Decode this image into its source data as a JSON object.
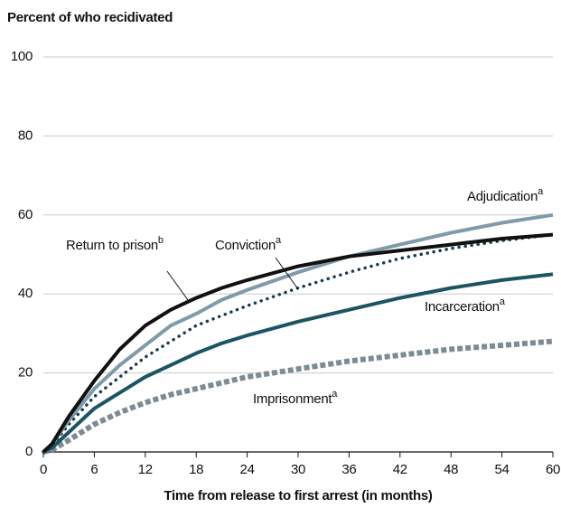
{
  "chart_data": {
    "type": "line",
    "title": "Percent of who recidivated",
    "xlabel": "Time from release to first arrest (in months)",
    "x": [
      0,
      1,
      3,
      6,
      9,
      12,
      15,
      18,
      21,
      24,
      30,
      36,
      42,
      48,
      54,
      60
    ],
    "series": [
      {
        "name": "Return to prison",
        "footnote": "b",
        "color": "#111111",
        "style": "solid",
        "values": [
          0,
          2,
          9,
          18,
          26,
          32,
          36,
          39,
          41.5,
          43.5,
          47,
          49.5,
          51,
          52.5,
          54,
          55
        ]
      },
      {
        "name": "Adjudication",
        "footnote": "a",
        "color": "#7f9aa8",
        "style": "solid",
        "values": [
          0,
          2,
          8,
          16,
          22,
          27,
          32,
          35,
          38.5,
          41,
          45.5,
          49.5,
          52.5,
          55.5,
          58,
          60
        ]
      },
      {
        "name": "Conviction",
        "footnote": "a",
        "color": "#1c3b4a",
        "style": "dotted",
        "values": [
          0,
          1.5,
          7,
          14,
          19,
          24,
          28,
          32,
          34.5,
          37,
          41.5,
          45.5,
          49,
          51.5,
          53.5,
          55
        ]
      },
      {
        "name": "Incarceration",
        "footnote": "a",
        "color": "#1d5462",
        "style": "solid",
        "values": [
          0,
          1,
          5,
          11,
          15,
          19,
          22,
          25,
          27.5,
          29.5,
          33,
          36,
          39,
          41.5,
          43.5,
          45
        ]
      },
      {
        "name": "Imprisonment",
        "footnote": "a",
        "color": "#7d8b94",
        "style": "dashed",
        "values": [
          0,
          0.5,
          3,
          7,
          10,
          12.5,
          14.5,
          16,
          17.5,
          19,
          21,
          23,
          24.5,
          26,
          27,
          28
        ]
      }
    ],
    "xlim": [
      0,
      60
    ],
    "xticks": [
      0,
      6,
      12,
      18,
      24,
      30,
      36,
      42,
      48,
      54,
      60
    ],
    "ylim": [
      0,
      100
    ],
    "yticks": [
      0,
      20,
      40,
      60,
      80,
      100
    ],
    "grid": true
  }
}
